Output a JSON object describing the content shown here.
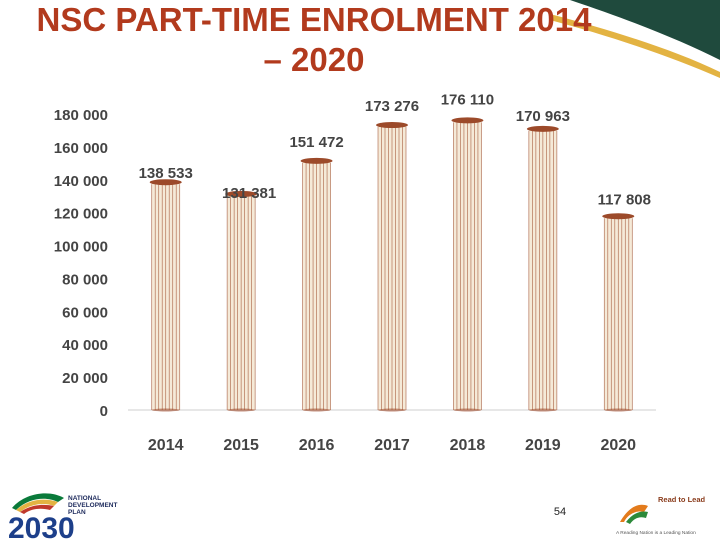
{
  "slide": {
    "title_line1": "NSC PART-TIME ENROLMENT 2014",
    "title_line2": "– 2020",
    "page_number": "54"
  },
  "logos": {
    "ndp_text_line1": "NATIONAL",
    "ndp_text_line2": "DEVELOPMENT",
    "ndp_text_line3": "PLAN",
    "ndp_year": "2030",
    "rtl_title": "Read to Lead",
    "rtl_tagline": "A Reading Nation is a Leading Nation"
  },
  "colors": {
    "title": "#b23a1d",
    "bar_fill": "#f5ead8",
    "bar_stroke": "#9c4a2a",
    "swoosh_dark": "#1f4a3d",
    "swoosh_gold": "#e3b342",
    "axis_text": "#444444"
  },
  "chart_data": {
    "type": "bar",
    "categories": [
      "2014",
      "2015",
      "2016",
      "2017",
      "2018",
      "2019",
      "2020"
    ],
    "values": [
      138533,
      131381,
      151472,
      173276,
      176110,
      170963,
      117808
    ],
    "data_labels": [
      "138 533",
      "131 381",
      "151 472",
      "173 276",
      "176 110",
      "170 963",
      "117 808"
    ],
    "y_ticks": [
      0,
      20000,
      40000,
      60000,
      80000,
      100000,
      120000,
      140000,
      160000,
      180000
    ],
    "y_tick_labels": [
      "0",
      "20 000",
      "40 000",
      "60 000",
      "80 000",
      "100 000",
      "120 000",
      "140 000",
      "160 000",
      "180 000"
    ],
    "ylim": [
      0,
      180000
    ],
    "title": "NSC PART-TIME ENROLMENT 2014 – 2020",
    "xlabel": "",
    "ylabel": "",
    "grid": false,
    "legend": "none"
  }
}
